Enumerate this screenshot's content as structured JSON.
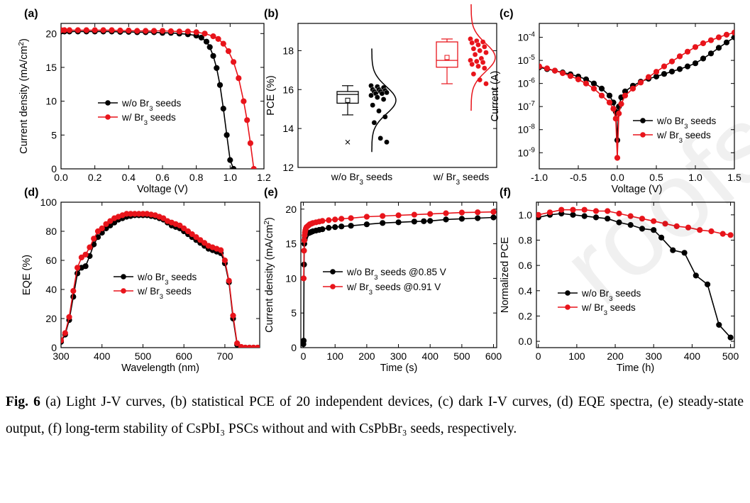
{
  "colors": {
    "black_series": "#000000",
    "red_series": "#e8141b",
    "axis": "#000000"
  },
  "watermark": "roofs",
  "caption": {
    "fig_label": "Fig. 6",
    "text": "(a) Light J-V curves, (b) statistical PCE of 20 independent devices, (c) dark I-V curves, (d) EQE spectra, (e) steady-state output, (f) long-term stability of CsPbI₃ PSCs without and with CsPbBr₃ seeds, respectively."
  },
  "chart_data": [
    {
      "id": "a",
      "panel_label": "(a)",
      "type": "line",
      "xlabel": "Voltage (V)",
      "ylabel": "Current density (mA/cm²)",
      "xlim": [
        0,
        1.2
      ],
      "ylim": [
        0,
        21.5
      ],
      "xticks": [
        0.0,
        0.2,
        0.4,
        0.6,
        0.8,
        1.0,
        1.2
      ],
      "xtick_labels": [
        "0.0",
        "0.2",
        "0.4",
        "0.6",
        "0.8",
        "1.0",
        "1.2"
      ],
      "yticks": [
        0,
        5,
        10,
        15,
        20
      ],
      "legend_position": "center-left",
      "series": [
        {
          "name": "w/o Br₃ seeds",
          "color": "#000000",
          "x": [
            0.0,
            0.02,
            0.05,
            0.1,
            0.15,
            0.2,
            0.25,
            0.3,
            0.35,
            0.4,
            0.45,
            0.5,
            0.55,
            0.6,
            0.65,
            0.7,
            0.75,
            0.8,
            0.83,
            0.86,
            0.88,
            0.9,
            0.92,
            0.94,
            0.96,
            0.98,
            1.0,
            1.02
          ],
          "y": [
            20.3,
            20.3,
            20.3,
            20.3,
            20.3,
            20.3,
            20.3,
            20.3,
            20.25,
            20.25,
            20.2,
            20.2,
            20.2,
            20.1,
            20.1,
            20.0,
            19.9,
            19.7,
            19.4,
            18.8,
            18.0,
            16.7,
            14.9,
            12.4,
            8.9,
            5.0,
            1.3,
            0.0
          ]
        },
        {
          "name": "w/ Br₃ seeds",
          "color": "#e8141b",
          "x": [
            0.0,
            0.02,
            0.05,
            0.1,
            0.15,
            0.2,
            0.25,
            0.3,
            0.35,
            0.4,
            0.45,
            0.5,
            0.55,
            0.6,
            0.65,
            0.7,
            0.75,
            0.8,
            0.85,
            0.9,
            0.93,
            0.96,
            0.99,
            1.02,
            1.05,
            1.08,
            1.1,
            1.12,
            1.14
          ],
          "y": [
            20.5,
            20.5,
            20.5,
            20.5,
            20.5,
            20.5,
            20.5,
            20.5,
            20.45,
            20.45,
            20.4,
            20.4,
            20.4,
            20.4,
            20.35,
            20.3,
            20.3,
            20.2,
            20.0,
            19.6,
            19.2,
            18.5,
            17.4,
            15.8,
            13.4,
            10.0,
            7.2,
            3.8,
            0.0
          ]
        }
      ]
    },
    {
      "id": "b",
      "panel_label": "(b)",
      "type": "box",
      "xlabel": "",
      "ylabel": "PCE (%)",
      "ylim": [
        12,
        19.4
      ],
      "yticks": [
        12,
        14,
        16,
        18
      ],
      "categories": [
        "w/o Br₃ seeds",
        "w/ Br₃ seeds"
      ],
      "series": [
        {
          "name": "w/o Br₃ seeds",
          "color": "#000000",
          "box": {
            "q1": 15.3,
            "median": 15.75,
            "q3": 15.9,
            "mean": 15.45,
            "whisker_low": 14.7,
            "whisker_high": 16.2,
            "outlier": 13.3
          },
          "points": [
            16.2,
            16.15,
            16.1,
            16.0,
            16.0,
            15.95,
            15.9,
            15.9,
            15.85,
            15.8,
            15.8,
            15.7,
            15.6,
            15.5,
            15.2,
            14.9,
            14.6,
            14.3,
            13.5,
            13.3
          ],
          "distribution": {
            "mean": 15.45,
            "sd": 0.7
          }
        },
        {
          "name": "w/ Br₃ seeds",
          "color": "#e8141b",
          "box": {
            "q1": 17.15,
            "median": 17.5,
            "q3": 18.45,
            "mean": 17.65,
            "whisker_low": 16.3,
            "whisker_high": 18.6
          },
          "points": [
            18.6,
            18.5,
            18.45,
            18.4,
            18.3,
            18.2,
            18.1,
            18.0,
            17.9,
            17.8,
            17.6,
            17.5,
            17.45,
            17.4,
            17.3,
            17.2,
            17.1,
            16.8,
            16.5,
            16.3
          ],
          "distribution": {
            "mean": 17.65,
            "sd": 0.72
          }
        }
      ]
    },
    {
      "id": "c",
      "panel_label": "(c)",
      "type": "line",
      "yscale": "log",
      "xlabel": "Voltage (V)",
      "ylabel": "Current (A)",
      "xlim": [
        -1.0,
        1.5
      ],
      "ylim": [
        2e-10,
        0.0004
      ],
      "xticks": [
        -1.0,
        -0.5,
        0.0,
        0.5,
        1.0,
        1.5
      ],
      "xtick_labels": [
        "-1.0",
        "-0.5",
        "0.0",
        "0.5",
        "1.0",
        "1.5"
      ],
      "yticks": [
        1e-09,
        1e-08,
        1e-07,
        1e-06,
        1e-05,
        0.0001
      ],
      "ytick_labels": [
        "10-9",
        "10-8",
        "10-7",
        "10-6",
        "10-5",
        "10-4"
      ],
      "legend_position": "center-right",
      "series": [
        {
          "name": "w/o Br₃ seeds",
          "color": "#000000",
          "x": [
            -1.0,
            -0.9,
            -0.8,
            -0.7,
            -0.6,
            -0.5,
            -0.4,
            -0.3,
            -0.2,
            -0.1,
            -0.05,
            -0.02,
            0.0,
            0.02,
            0.05,
            0.1,
            0.2,
            0.3,
            0.4,
            0.5,
            0.6,
            0.7,
            0.8,
            0.9,
            1.0,
            1.1,
            1.2,
            1.3,
            1.4,
            1.5
          ],
          "y": [
            5e-06,
            4.2e-06,
            3.6e-06,
            3e-06,
            2.5e-06,
            2e-06,
            1.5e-06,
            1e-06,
            6e-07,
            3e-07,
            1.5e-07,
            6e-08,
            3.5e-09,
            1e-07,
            2.5e-07,
            4.5e-07,
            8e-07,
            1.2e-06,
            1.6e-06,
            2e-06,
            2.6e-06,
            3.3e-06,
            4.2e-06,
            5.5e-06,
            7.5e-06,
            1.2e-05,
            2e-05,
            3.5e-05,
            6e-05,
            0.0001
          ]
        },
        {
          "name": "w/ Br₃ seeds",
          "color": "#e8141b",
          "x": [
            -1.0,
            -0.9,
            -0.8,
            -0.7,
            -0.6,
            -0.5,
            -0.4,
            -0.3,
            -0.2,
            -0.1,
            -0.05,
            -0.02,
            0.0,
            0.02,
            0.05,
            0.1,
            0.2,
            0.3,
            0.4,
            0.5,
            0.6,
            0.7,
            0.8,
            0.9,
            1.0,
            1.1,
            1.2,
            1.3,
            1.4,
            1.5
          ],
          "y": [
            5.5e-06,
            4.5e-06,
            3.6e-06,
            2.8e-06,
            2.1e-06,
            1.5e-06,
            1e-06,
            6e-07,
            3e-07,
            1.5e-07,
            8e-08,
            3e-08,
            6e-10,
            5e-08,
            1.3e-07,
            3e-07,
            6e-07,
            1.1e-06,
            1.9e-06,
            3.2e-06,
            5.5e-06,
            9e-06,
            1.5e-05,
            2.4e-05,
            3.8e-05,
            5.5e-05,
            7.5e-05,
            0.0001,
            0.00013,
            0.00016
          ]
        }
      ]
    },
    {
      "id": "d",
      "panel_label": "(d)",
      "type": "line",
      "xlabel": "Wavelength (nm)",
      "ylabel": "EQE (%)",
      "xlim": [
        300,
        785
      ],
      "ylim": [
        0,
        100
      ],
      "xticks": [
        300,
        400,
        500,
        600,
        700
      ],
      "yticks": [
        0,
        20,
        40,
        60,
        80,
        100
      ],
      "legend_position": "center",
      "series": [
        {
          "name": "w/o Br₃ seeds",
          "color": "#000000",
          "x": [
            300,
            310,
            320,
            330,
            340,
            350,
            360,
            370,
            380,
            390,
            400,
            410,
            420,
            430,
            440,
            450,
            460,
            470,
            480,
            490,
            500,
            510,
            520,
            530,
            540,
            550,
            560,
            570,
            580,
            590,
            600,
            610,
            620,
            630,
            640,
            650,
            660,
            670,
            680,
            690,
            700,
            710,
            720,
            730,
            740,
            750,
            760,
            770,
            780
          ],
          "y": [
            4,
            9,
            19,
            35,
            51,
            55,
            56,
            63,
            71,
            76,
            79,
            82,
            84,
            86,
            88,
            89,
            90,
            90.5,
            91,
            91,
            91,
            91,
            90.5,
            90,
            89,
            88,
            86,
            84,
            83,
            82,
            80,
            78,
            76,
            74,
            72,
            70,
            68,
            67,
            66,
            65,
            58,
            45,
            20,
            2,
            0,
            0,
            0,
            0,
            0
          ]
        },
        {
          "name": "w/ Br₃ seeds",
          "color": "#e8141b",
          "x": [
            300,
            310,
            320,
            330,
            340,
            350,
            360,
            370,
            380,
            390,
            400,
            410,
            420,
            430,
            440,
            450,
            460,
            470,
            480,
            490,
            500,
            510,
            520,
            530,
            540,
            550,
            560,
            570,
            580,
            590,
            600,
            610,
            620,
            630,
            640,
            650,
            660,
            670,
            680,
            690,
            700,
            710,
            720,
            730,
            740,
            750,
            760,
            770,
            780
          ],
          "y": [
            5,
            10,
            21,
            39,
            55,
            62,
            64,
            69,
            75,
            80,
            82,
            85,
            87,
            89,
            90,
            91,
            92,
            92,
            92,
            92,
            92,
            92,
            91.5,
            91,
            90,
            89,
            87,
            86,
            85,
            84,
            82,
            80,
            78,
            76,
            74,
            72,
            70,
            69,
            68,
            67,
            60,
            46,
            22,
            3,
            0.5,
            0,
            0,
            0,
            0
          ]
        }
      ]
    },
    {
      "id": "e",
      "panel_label": "(e)",
      "type": "line",
      "xlabel": "Time (s)",
      "ylabel": "Current density (mA/cm²)",
      "xlim": [
        -8,
        610
      ],
      "ylim": [
        0,
        21
      ],
      "xticks": [
        0,
        100,
        200,
        300,
        400,
        500,
        600
      ],
      "yticks": [
        0,
        5,
        10,
        15,
        20
      ],
      "legend_position": "center",
      "series": [
        {
          "name": "w/o Br₃ seeds @0.85 V",
          "color": "#000000",
          "x": [
            0,
            1,
            2,
            3,
            4,
            5,
            6,
            8,
            10,
            15,
            20,
            25,
            30,
            40,
            50,
            60,
            80,
            100,
            120,
            150,
            200,
            250,
            300,
            350,
            380,
            400,
            450,
            500,
            550,
            600
          ],
          "y": [
            0.5,
            1.0,
            12.0,
            15.0,
            15.6,
            15.9,
            16.0,
            16.2,
            16.4,
            16.5,
            16.6,
            16.7,
            16.8,
            16.9,
            17.0,
            17.1,
            17.3,
            17.4,
            17.5,
            17.6,
            17.8,
            18.0,
            18.1,
            18.2,
            18.25,
            18.3,
            18.5,
            18.6,
            18.7,
            18.8
          ]
        },
        {
          "name": "w/ Br₃ seeds @0.91 V",
          "color": "#e8141b",
          "x": [
            1,
            2,
            3,
            4,
            5,
            6,
            8,
            10,
            15,
            20,
            25,
            30,
            40,
            50,
            60,
            80,
            100,
            120,
            150,
            200,
            250,
            300,
            350,
            400,
            450,
            500,
            550,
            600
          ],
          "y": [
            10.0,
            14.0,
            15.5,
            16.2,
            16.6,
            16.9,
            17.2,
            17.4,
            17.6,
            17.8,
            17.9,
            18.0,
            18.1,
            18.2,
            18.3,
            18.4,
            18.5,
            18.6,
            18.7,
            18.9,
            19.0,
            19.1,
            19.2,
            19.3,
            19.4,
            19.5,
            19.55,
            19.6
          ]
        }
      ]
    },
    {
      "id": "f",
      "panel_label": "(f)",
      "type": "line",
      "xlabel": "Time (h)",
      "ylabel": "Normalized PCE",
      "xlim": [
        -5,
        510
      ],
      "ylim": [
        -0.05,
        1.1
      ],
      "xticks": [
        0,
        100,
        200,
        300,
        400,
        500
      ],
      "yticks": [
        0.0,
        0.2,
        0.4,
        0.6,
        0.8,
        1.0
      ],
      "ytick_labels": [
        "0.0",
        "0.2",
        "0.4",
        "0.6",
        "0.8",
        "1.0"
      ],
      "legend_position": "center-left",
      "series": [
        {
          "name": "w/o Br₃ seeds",
          "color": "#000000",
          "x": [
            0,
            30,
            60,
            90,
            120,
            150,
            180,
            210,
            240,
            270,
            300,
            320,
            350,
            380,
            410,
            440,
            470,
            500
          ],
          "y": [
            0.98,
            1.0,
            1.01,
            1.0,
            0.99,
            0.98,
            0.97,
            0.94,
            0.92,
            0.89,
            0.88,
            0.82,
            0.72,
            0.7,
            0.52,
            0.45,
            0.13,
            0.03
          ]
        },
        {
          "name": "w/ Br₃ seeds",
          "color": "#e8141b",
          "x": [
            0,
            30,
            60,
            90,
            120,
            150,
            180,
            210,
            240,
            270,
            300,
            330,
            360,
            390,
            420,
            450,
            480,
            500
          ],
          "y": [
            1.0,
            1.02,
            1.04,
            1.04,
            1.04,
            1.03,
            1.03,
            1.01,
            0.99,
            0.97,
            0.95,
            0.93,
            0.91,
            0.9,
            0.88,
            0.87,
            0.85,
            0.84
          ]
        }
      ]
    }
  ]
}
